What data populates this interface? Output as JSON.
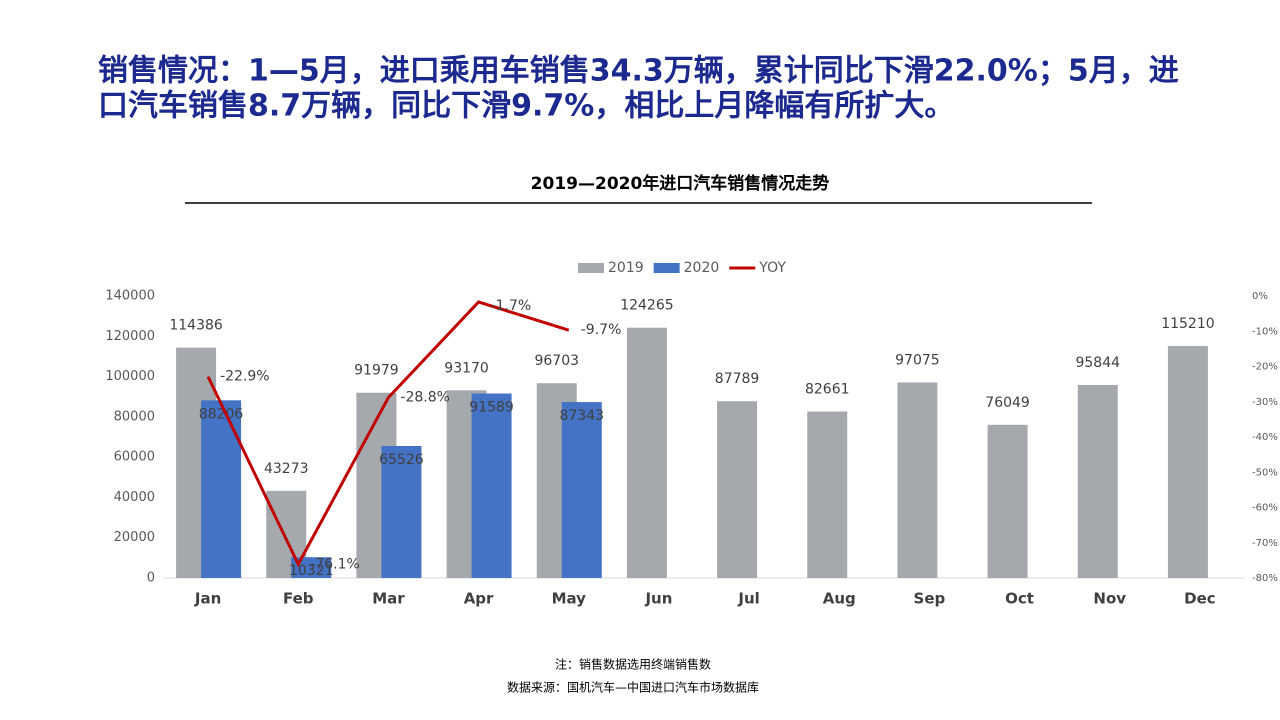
{
  "heading": [
    "销售情况：1—5月，进口乘用车销售34.3万辆，累计同比下滑22.0%；5月，进",
    "口汽车销售8.7万辆，同比下滑9.7%，相比上月降幅有所扩大。"
  ],
  "notes": [
    "注：销售数据选用终端销售数",
    "数据来源：国机汽车—中国进口汽车市场数据库"
  ],
  "chart_data": {
    "type": "bar",
    "title": "2019—2020年进口汽车销售情况走势",
    "categories": [
      "Jan",
      "Feb",
      "Mar",
      "Apr",
      "May",
      "Jun",
      "Jul",
      "Aug",
      "Sep",
      "Oct",
      "Nov",
      "Dec"
    ],
    "series": [
      {
        "name": "2019",
        "color": "#a5a9ae",
        "values": [
          114386,
          43273,
          91979,
          93170,
          96703,
          124265,
          87789,
          82661,
          97075,
          76049,
          95844,
          115210
        ]
      },
      {
        "name": "2020",
        "color": "#4472c4",
        "values": [
          88206,
          10321,
          65526,
          91589,
          87343,
          null,
          null,
          null,
          null,
          null,
          null,
          null
        ]
      },
      {
        "name": "YOY",
        "color": "#c00000",
        "type": "line",
        "axis": "y2",
        "values": [
          -22.9,
          -76.1,
          -28.8,
          -1.7,
          -9.7,
          null,
          null,
          null,
          null,
          null,
          null,
          null
        ],
        "value_labels": [
          "-22.9%",
          "-76.1%",
          "-28.8%",
          "-1.7%",
          "-9.7%",
          null,
          null,
          null,
          null,
          null,
          null,
          null
        ]
      }
    ],
    "ylim": [
      0,
      140000
    ],
    "yticks": [
      0,
      20000,
      40000,
      60000,
      80000,
      100000,
      120000,
      140000
    ],
    "y2lim": [
      -80,
      0
    ],
    "y2ticks": [
      {
        "value": -80,
        "label": "-80%"
      },
      {
        "value": -70,
        "label": "-70%"
      },
      {
        "value": -60,
        "label": "-60%"
      },
      {
        "value": -50,
        "label": "-50%"
      },
      {
        "value": -40,
        "label": "-40%"
      },
      {
        "value": -30,
        "label": "-30%"
      },
      {
        "value": -20,
        "label": "-20%"
      },
      {
        "value": -10,
        "label": "-10%"
      },
      {
        "value": 0,
        "label": "0%"
      }
    ],
    "legend": "top"
  }
}
